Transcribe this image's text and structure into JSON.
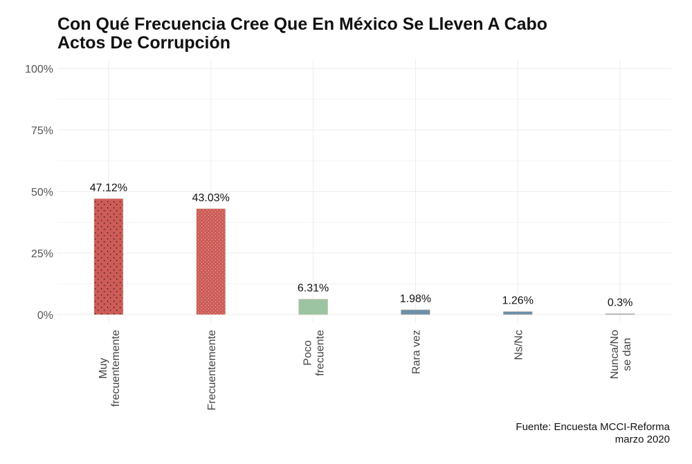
{
  "chart_data": {
    "type": "bar",
    "title_lines": [
      "Con Qué Frecuencia Cree Que En México Se Lleven A Cabo",
      "Actos De Corrupción"
    ],
    "categories": [
      [
        "Muy",
        "frecuentemente"
      ],
      [
        "Frecuentemente"
      ],
      [
        "Poco",
        "frecuente"
      ],
      [
        "Rara vez"
      ],
      [
        "Ns/Nc"
      ],
      [
        "Nunca/No",
        "se dan"
      ]
    ],
    "values": [
      47.12,
      43.03,
      6.31,
      1.98,
      1.26,
      0.3
    ],
    "data_labels": [
      "47.12%",
      "43.03%",
      "6.31%",
      "1.98%",
      "1.26%",
      "0.3%"
    ],
    "colors": [
      "#cd5b57",
      "#cd5b57",
      "#9dc4a2",
      "#6e8fa8",
      "#6e8fa8",
      "#8fa8bd"
    ],
    "ylim": [
      0,
      100
    ],
    "yticks": [
      0,
      25,
      50,
      75,
      100
    ],
    "ytick_labels": [
      "0%",
      "25%",
      "50%",
      "75%",
      "100%"
    ],
    "xlabel": "",
    "ylabel": "",
    "grid": true,
    "caption_lines": [
      "Fuente: Encuesta MCCI-Reforma",
      "marzo 2020"
    ]
  }
}
